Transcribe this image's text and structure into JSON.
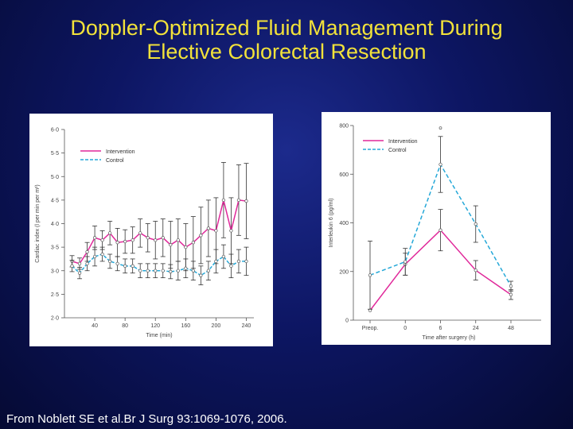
{
  "title": {
    "line1": "Doppler-Optimized Fluid Management During",
    "line2": "Elective Colorectal Resection"
  },
  "citation": "From Noblett SE et al.Br J Surg 93:1069-1076, 2006.",
  "colors": {
    "intervention": "#e0289a",
    "control": "#25a8d8",
    "title": "#f2e23a"
  },
  "chart_data": [
    {
      "type": "line",
      "xlabel": "Time (min)",
      "ylabel": "Cardiac index (l per min per m²)",
      "xlim": [
        0,
        250
      ],
      "ylim": [
        2.0,
        6.0
      ],
      "x_ticks": [
        "40",
        "80",
        "120",
        "160",
        "200",
        "240"
      ],
      "x_tick_values": [
        40,
        80,
        120,
        160,
        200,
        240
      ],
      "y_ticks": [
        "2·0",
        "2·5",
        "3·0",
        "3·5",
        "4·0",
        "4·5",
        "5·0",
        "5·5",
        "6·0"
      ],
      "y_tick_values": [
        2.0,
        2.5,
        3.0,
        3.5,
        4.0,
        4.5,
        5.0,
        5.5,
        6.0
      ],
      "legend": [
        "Intervention",
        "Control"
      ],
      "legend_position": "top-left",
      "x": [
        10,
        20,
        30,
        40,
        50,
        60,
        70,
        80,
        90,
        100,
        110,
        120,
        130,
        140,
        150,
        160,
        170,
        180,
        190,
        200,
        210,
        220,
        230,
        240
      ],
      "series": [
        {
          "name": "Intervention",
          "style": "solid",
          "values": [
            3.2,
            3.15,
            3.4,
            3.7,
            3.65,
            3.8,
            3.6,
            3.62,
            3.65,
            3.8,
            3.7,
            3.65,
            3.7,
            3.55,
            3.65,
            3.5,
            3.6,
            3.75,
            3.9,
            3.85,
            4.5,
            3.85,
            4.5,
            4.48
          ],
          "errors": [
            0.12,
            0.12,
            0.2,
            0.25,
            0.2,
            0.25,
            0.3,
            0.25,
            0.28,
            0.3,
            0.3,
            0.4,
            0.4,
            0.5,
            0.45,
            0.5,
            0.55,
            0.6,
            0.6,
            0.7,
            0.8,
            0.7,
            0.75,
            0.8
          ]
        },
        {
          "name": "Control",
          "style": "dashed",
          "values": [
            3.1,
            2.95,
            3.15,
            3.3,
            3.35,
            3.2,
            3.15,
            3.1,
            3.1,
            3.0,
            3.0,
            3.0,
            3.0,
            2.98,
            3.0,
            3.05,
            3.0,
            2.9,
            3.0,
            3.2,
            3.3,
            3.1,
            3.2,
            3.2
          ],
          "errors": [
            0.12,
            0.12,
            0.15,
            0.2,
            0.15,
            0.15,
            0.15,
            0.15,
            0.15,
            0.15,
            0.15,
            0.15,
            0.15,
            0.15,
            0.2,
            0.2,
            0.2,
            0.2,
            0.2,
            0.25,
            0.25,
            0.25,
            0.25,
            0.3
          ]
        }
      ]
    },
    {
      "type": "line",
      "xlabel": "Time after surgery (h)",
      "ylabel": "Interleukin 6 (pg/ml)",
      "ylim": [
        0,
        800
      ],
      "categories": [
        "Preop.",
        "0",
        "6",
        "24",
        "48"
      ],
      "y_ticks": [
        "0",
        "200",
        "400",
        "600",
        "800"
      ],
      "y_tick_values": [
        0,
        200,
        400,
        600,
        800
      ],
      "legend": [
        "Intervention",
        "Control"
      ],
      "legend_position": "top-left",
      "outlier": {
        "category": "6",
        "value": 790
      },
      "series": [
        {
          "name": "Intervention",
          "style": "solid",
          "values": [
            40,
            230,
            370,
            205,
            105
          ],
          "errors": [
            0,
            45,
            85,
            40,
            20
          ]
        },
        {
          "name": "Control",
          "style": "dashed",
          "values": [
            185,
            240,
            640,
            395,
            140
          ],
          "errors": [
            140,
            55,
            115,
            75,
            20
          ]
        }
      ]
    }
  ]
}
